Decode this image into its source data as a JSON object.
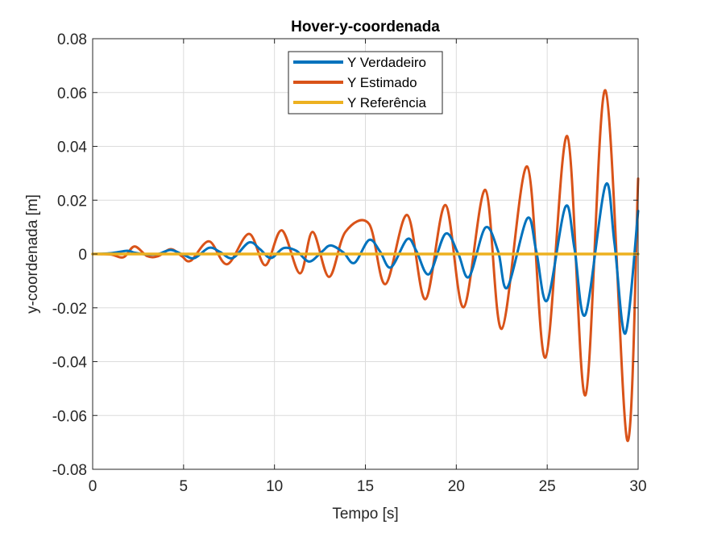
{
  "chart_data": {
    "type": "line",
    "title": "Hover-y-coordenada",
    "xlabel": "Tempo [s]",
    "ylabel": "y-coordenada [m]",
    "xlim": [
      0,
      30
    ],
    "ylim": [
      -0.08,
      0.08
    ],
    "x_ticks": [
      "0",
      "5",
      "10",
      "15",
      "20",
      "25",
      "30"
    ],
    "y_ticks": [
      "-0.08",
      "-0.06",
      "-0.04",
      "-0.02",
      "0",
      "0.02",
      "0.04",
      "0.06",
      "0.08"
    ],
    "grid": true,
    "legend_position": "top-center",
    "series": [
      {
        "name": "Y Verdadeiro",
        "color": "#0072BD",
        "x": [
          0,
          1,
          1.9,
          2.3,
          3.0,
          3.6,
          4.3,
          5.0,
          5.6,
          6.4,
          7.0,
          7.7,
          8.6,
          9.2,
          9.8,
          10.5,
          11.2,
          11.9,
          12.6,
          13.1,
          13.8,
          14.4,
          15.2,
          15.8,
          16.4,
          17.3,
          17.8,
          18.5,
          19.4,
          20.1,
          20.7,
          21.6,
          22.3,
          22.8,
          23.9,
          24.4,
          25.0,
          26.0,
          26.5,
          27.1,
          28.2,
          28.7,
          29.3,
          30.0
        ],
        "y": [
          0,
          0.0003,
          0.0012,
          0.0005,
          -0.0002,
          0.0,
          0.0015,
          -0.0003,
          -0.0015,
          0.0023,
          0.0008,
          -0.0015,
          0.0043,
          0.0018,
          -0.0015,
          0.0022,
          0.0012,
          -0.0028,
          0.0008,
          0.0032,
          0.0005,
          -0.0033,
          0.0052,
          0.001,
          -0.005,
          0.0055,
          0.0012,
          -0.0075,
          0.0075,
          0.0002,
          -0.0085,
          0.0098,
          0.001,
          -0.0125,
          0.0132,
          0.001,
          -0.0172,
          0.0175,
          0.002,
          -0.0225,
          0.0255,
          0.004,
          -0.0295,
          0.016
        ]
      },
      {
        "name": "Y Estimado",
        "color": "#D95319",
        "x": [
          0,
          1,
          1.7,
          2.3,
          3.0,
          3.6,
          4.3,
          4.9,
          5.4,
          6.4,
          7.4,
          8.6,
          9.5,
          10.4,
          11.4,
          12.1,
          13.0,
          13.9,
          15.2,
          16.1,
          17.3,
          18.3,
          19.4,
          20.4,
          21.6,
          22.5,
          23.9,
          24.9,
          26.1,
          27.1,
          28.2,
          29.4,
          30.0
        ],
        "y": [
          0,
          -0.0002,
          -0.0012,
          0.0028,
          -0.0008,
          -0.0008,
          0.0018,
          -0.0008,
          -0.0025,
          0.0047,
          -0.0038,
          0.0075,
          -0.0042,
          0.0088,
          -0.0072,
          0.0082,
          -0.0085,
          0.0082,
          0.0112,
          -0.0112,
          0.0145,
          -0.0168,
          0.0182,
          -0.0198,
          0.0238,
          -0.0278,
          0.0325,
          -0.0385,
          0.0438,
          -0.0525,
          0.0608,
          -0.0692,
          0.028
        ]
      },
      {
        "name": "Y Referência",
        "color": "#EDB120",
        "x": [
          0,
          30
        ],
        "y": [
          0,
          0
        ]
      }
    ]
  }
}
